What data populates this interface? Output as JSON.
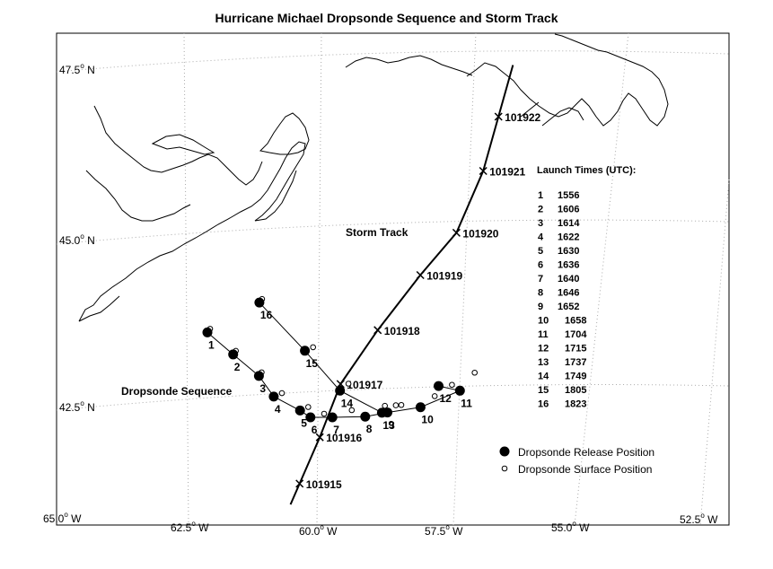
{
  "title": "Hurricane Michael Dropsonde Sequence and Storm Track",
  "axes": {
    "lat_ticks": [
      {
        "value": "47.5",
        "unit": " N"
      },
      {
        "value": "45.0",
        "unit": " N"
      },
      {
        "value": "42.5",
        "unit": " N"
      }
    ],
    "lon_ticks": [
      {
        "value": "65.0",
        "unit": " W"
      },
      {
        "value": "62.5",
        "unit": " W"
      },
      {
        "value": "60.0",
        "unit": " W"
      },
      {
        "value": "57.5",
        "unit": " W"
      },
      {
        "value": "55.0",
        "unit": " W"
      },
      {
        "value": "52.5",
        "unit": " W"
      }
    ]
  },
  "labels": {
    "storm_track": "Storm Track",
    "dropsonde_sequence": "Dropsonde Sequence"
  },
  "launch_times": {
    "heading": "Launch Times (UTC):",
    "rows": [
      {
        "num": "1",
        "time": "1556"
      },
      {
        "num": "2",
        "time": "1606"
      },
      {
        "num": "3",
        "time": "1614"
      },
      {
        "num": "4",
        "time": "1622"
      },
      {
        "num": "5",
        "time": "1630"
      },
      {
        "num": "6",
        "time": "1636"
      },
      {
        "num": "7",
        "time": "1640"
      },
      {
        "num": "8",
        "time": "1646"
      },
      {
        "num": "9",
        "time": "1652"
      },
      {
        "num": "10",
        "time": "1658"
      },
      {
        "num": "11",
        "time": "1704"
      },
      {
        "num": "12",
        "time": "1715"
      },
      {
        "num": "13",
        "time": "1737"
      },
      {
        "num": "14",
        "time": "1749"
      },
      {
        "num": "15",
        "time": "1805"
      },
      {
        "num": "16",
        "time": "1823"
      }
    ]
  },
  "legend": {
    "release": "Dropsonde Release Position",
    "surface": "Dropsonde Surface Position"
  },
  "storm_track_points": [
    {
      "label": "101915",
      "lon": -60.3,
      "lat": 41.5
    },
    {
      "label": "101916",
      "lon": -60.0,
      "lat": 42.2
    },
    {
      "label": "101917",
      "lon": -59.7,
      "lat": 43.0
    },
    {
      "label": "101918",
      "lon": -59.1,
      "lat": 43.8
    },
    {
      "label": "101919",
      "lon": -58.4,
      "lat": 44.6
    },
    {
      "label": "101920",
      "lon": -57.8,
      "lat": 45.2
    },
    {
      "label": "101921",
      "lon": -57.4,
      "lat": 46.1
    },
    {
      "label": "101922",
      "lon": -57.2,
      "lat": 46.9
    }
  ],
  "dropsondes": [
    {
      "n": "1",
      "release": {
        "lon": -62.2,
        "lat": 43.7
      },
      "surface": {
        "lon": -62.2,
        "lat": 43.7
      }
    },
    {
      "n": "2",
      "release": {
        "lon": -61.7,
        "lat": 43.4
      },
      "surface": {
        "lon": -61.7,
        "lat": 43.4
      }
    },
    {
      "n": "3",
      "release": {
        "lon": -61.2,
        "lat": 43.1
      },
      "surface": {
        "lon": -61.2,
        "lat": 43.1
      }
    },
    {
      "n": "4",
      "release": {
        "lon": -60.9,
        "lat": 42.8
      },
      "surface": {
        "lon": -60.8,
        "lat": 42.8
      }
    },
    {
      "n": "5",
      "release": {
        "lon": -60.4,
        "lat": 42.6
      },
      "surface": {
        "lon": -60.3,
        "lat": 42.6
      }
    },
    {
      "n": "6",
      "release": {
        "lon": -60.2,
        "lat": 42.5
      },
      "surface": {
        "lon": -60.0,
        "lat": 42.5
      }
    },
    {
      "n": "7",
      "release": {
        "lon": -59.8,
        "lat": 42.5
      },
      "surface": {
        "lon": -59.5,
        "lat": 42.55
      }
    },
    {
      "n": "8",
      "release": {
        "lon": -59.2,
        "lat": 42.5
      },
      "surface": {
        "lon": -58.9,
        "lat": 42.6
      }
    },
    {
      "n": "9",
      "release": {
        "lon": -58.8,
        "lat": 42.55
      },
      "surface": {
        "lon": -58.6,
        "lat": 42.6
      }
    },
    {
      "n": "10",
      "release": {
        "lon": -58.2,
        "lat": 42.6
      },
      "surface": {
        "lon": -58.0,
        "lat": 42.7
      }
    },
    {
      "n": "11",
      "release": {
        "lon": -57.5,
        "lat": 42.8
      },
      "surface": {
        "lon": -57.3,
        "lat": 43.0
      }
    },
    {
      "n": "12",
      "release": {
        "lon": -57.9,
        "lat": 42.9
      },
      "surface": {
        "lon": -57.7,
        "lat": 42.85
      }
    },
    {
      "n": "13",
      "release": {
        "lon": -58.9,
        "lat": 42.55
      },
      "surface": {
        "lon": -58.7,
        "lat": 42.6
      }
    },
    {
      "n": "14",
      "release": {
        "lon": -59.7,
        "lat": 42.9
      },
      "surface": {
        "lon": -59.6,
        "lat": 42.95
      }
    },
    {
      "n": "15",
      "release": {
        "lon": -60.4,
        "lat": 43.5
      },
      "surface": {
        "lon": -60.3,
        "lat": 43.5
      }
    },
    {
      "n": "16",
      "release": {
        "lon": -61.3,
        "lat": 44.2
      },
      "surface": {
        "lon": -61.3,
        "lat": 44.2
      }
    }
  ]
}
